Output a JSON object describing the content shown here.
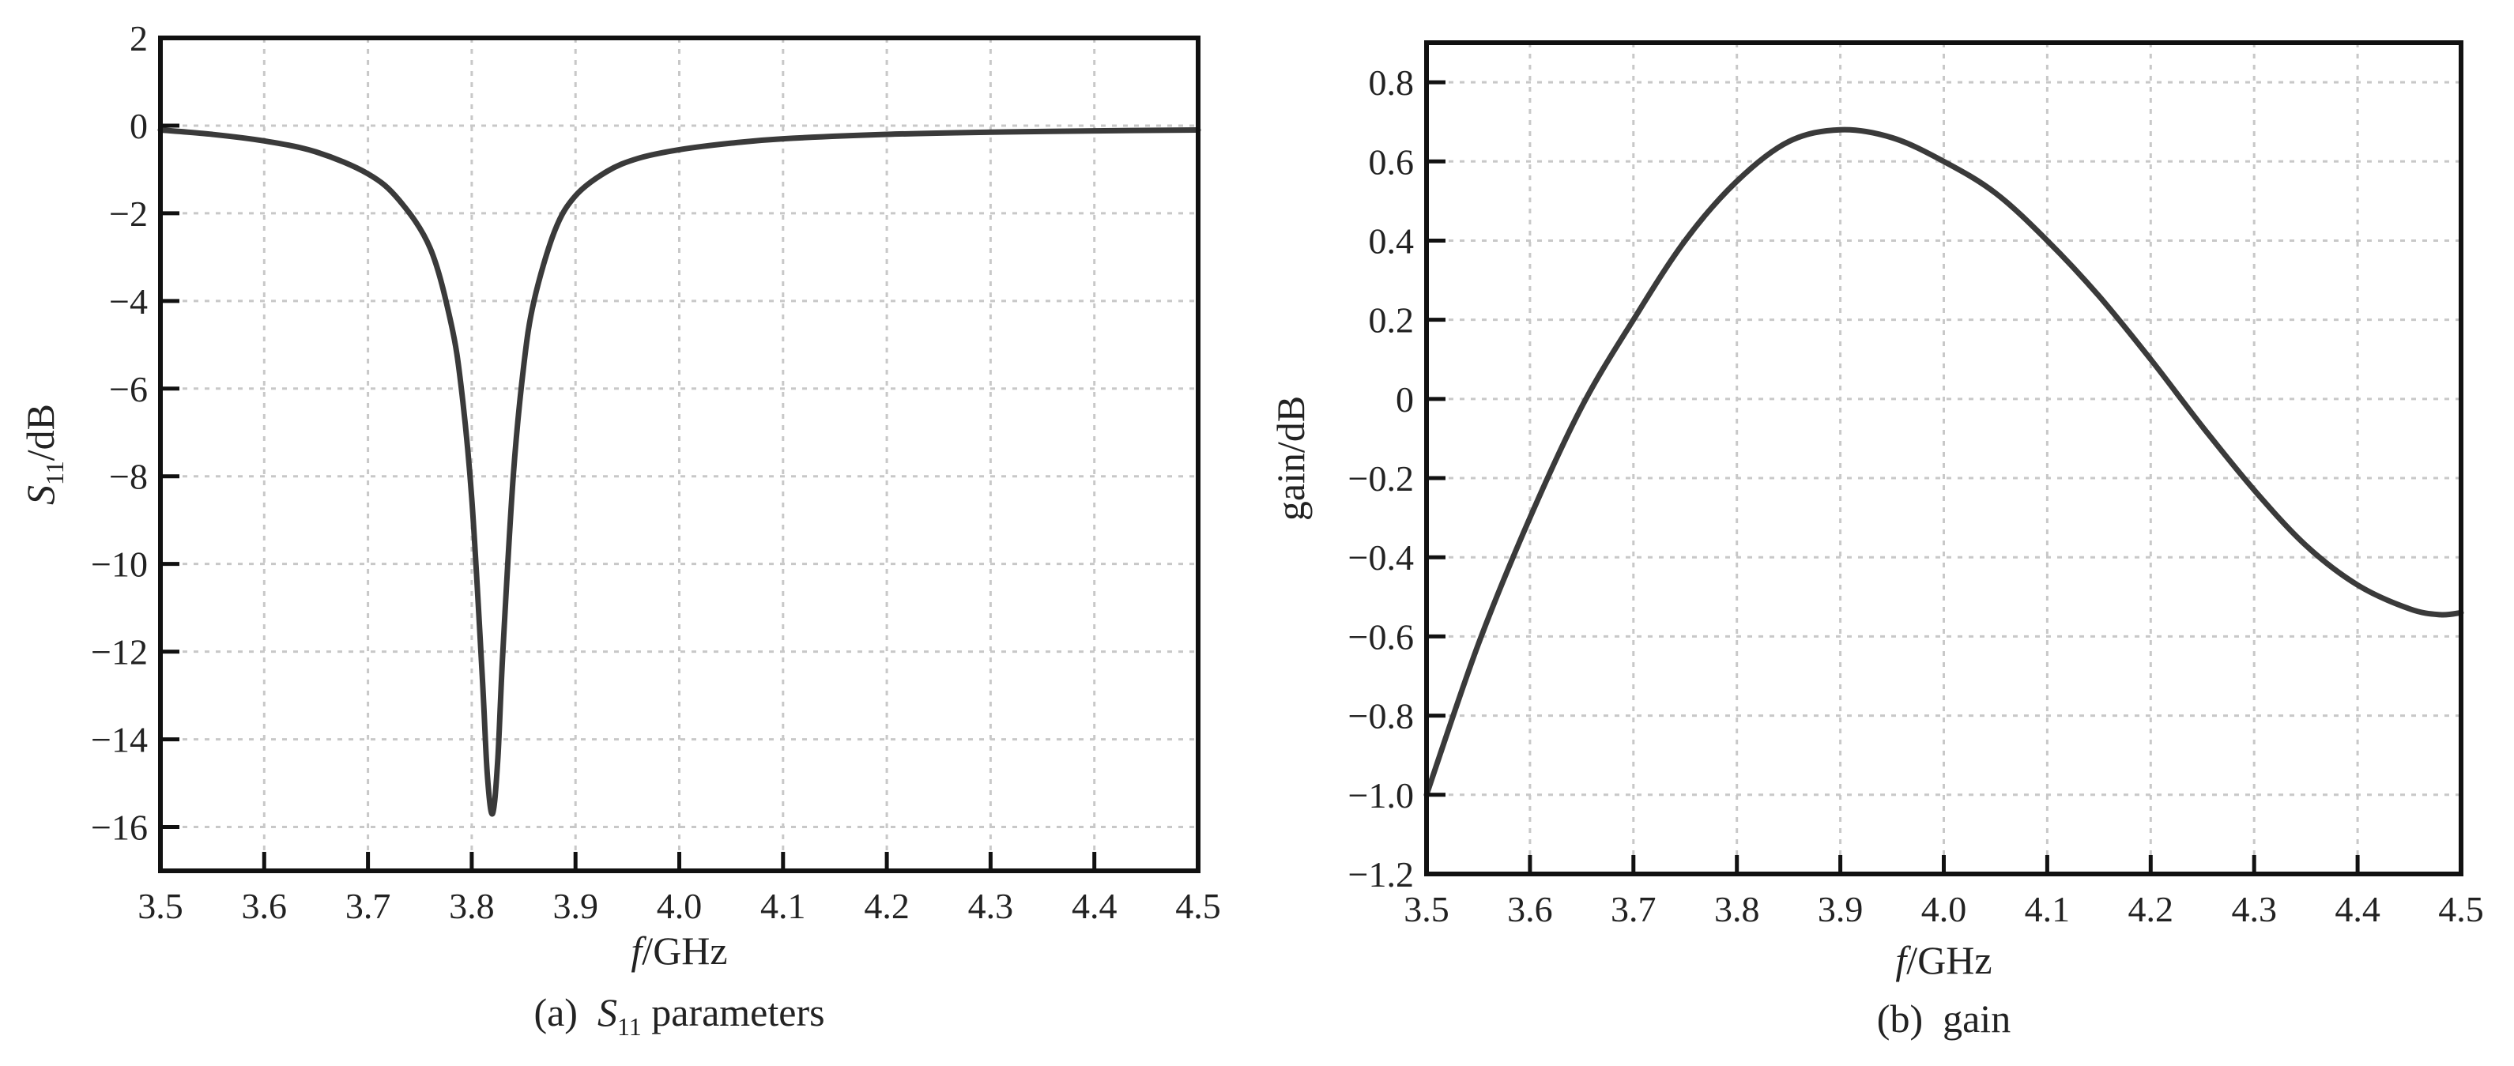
{
  "chart_data": [
    {
      "type": "line",
      "caption_prefix": "(a)",
      "caption_symbol": "S",
      "caption_subscript": "11",
      "caption_rest": "parameters",
      "xlabel_italic": "f",
      "xlabel_rest": "/GHz",
      "ylabel_symbol": "S",
      "ylabel_subscript": "11",
      "ylabel_rest": "/dB",
      "xlim": [
        3.5,
        4.5
      ],
      "ylim": [
        -17,
        2
      ],
      "xticks": [
        3.5,
        3.6,
        3.7,
        3.8,
        3.9,
        4.0,
        4.1,
        4.2,
        4.3,
        4.4,
        4.5
      ],
      "xtick_labels": [
        "3.5",
        "3.6",
        "3.7",
        "3.8",
        "3.9",
        "4.0",
        "4.1",
        "4.2",
        "4.3",
        "4.4",
        "4.5"
      ],
      "yticks": [
        2,
        0,
        -2,
        -4,
        -6,
        -8,
        -10,
        -12,
        -14,
        -16
      ],
      "ytick_labels": [
        "2",
        "0",
        "−2",
        "−4",
        "−6",
        "−8",
        "−10",
        "−12",
        "−14",
        "−16"
      ],
      "grid": true,
      "series": [
        {
          "x": [
            3.5,
            3.55,
            3.6,
            3.65,
            3.7,
            3.73,
            3.76,
            3.78,
            3.79,
            3.8,
            3.81,
            3.815,
            3.82,
            3.825,
            3.83,
            3.84,
            3.85,
            3.86,
            3.88,
            3.9,
            3.93,
            3.96,
            4.0,
            4.05,
            4.1,
            4.2,
            4.3,
            4.4,
            4.5
          ],
          "y": [
            -0.1,
            -0.2,
            -0.35,
            -0.6,
            -1.1,
            -1.7,
            -2.8,
            -4.5,
            -6.0,
            -8.5,
            -12.5,
            -14.8,
            -15.7,
            -14.5,
            -12.0,
            -8.0,
            -5.5,
            -4.0,
            -2.4,
            -1.6,
            -1.05,
            -0.75,
            -0.55,
            -0.4,
            -0.3,
            -0.2,
            -0.15,
            -0.12,
            -0.1
          ]
        }
      ]
    },
    {
      "type": "line",
      "caption_prefix": "(b)",
      "caption_text": "gain",
      "xlabel_italic": "f",
      "xlabel_rest": "/GHz",
      "ylabel": "gain/dB",
      "xlim": [
        3.5,
        4.5
      ],
      "ylim": [
        -1.2,
        0.9
      ],
      "xticks": [
        3.5,
        3.6,
        3.7,
        3.8,
        3.9,
        4.0,
        4.1,
        4.2,
        4.3,
        4.4,
        4.5
      ],
      "xtick_labels": [
        "3.5",
        "3.6",
        "3.7",
        "3.8",
        "3.9",
        "4.0",
        "4.1",
        "4.2",
        "4.3",
        "4.4",
        "4.5"
      ],
      "yticks": [
        0.8,
        0.6,
        0.4,
        0.2,
        0,
        -0.2,
        -0.4,
        -0.6,
        -0.8,
        -1.0,
        -1.2
      ],
      "ytick_labels": [
        "0.8",
        "0.6",
        "0.4",
        "0.2",
        "0",
        "−0.2",
        "−0.4",
        "−0.6",
        "−0.8",
        "−1.0",
        "−1.2"
      ],
      "grid": true,
      "series": [
        {
          "x": [
            3.5,
            3.55,
            3.6,
            3.65,
            3.7,
            3.75,
            3.8,
            3.85,
            3.9,
            3.95,
            4.0,
            4.05,
            4.1,
            4.15,
            4.2,
            4.25,
            4.3,
            4.35,
            4.4,
            4.45,
            4.48,
            4.5
          ],
          "y": [
            -1.0,
            -0.62,
            -0.3,
            -0.02,
            0.2,
            0.4,
            0.55,
            0.65,
            0.68,
            0.66,
            0.6,
            0.52,
            0.4,
            0.26,
            0.1,
            -0.07,
            -0.23,
            -0.37,
            -0.47,
            -0.53,
            -0.545,
            -0.54
          ]
        }
      ]
    }
  ]
}
